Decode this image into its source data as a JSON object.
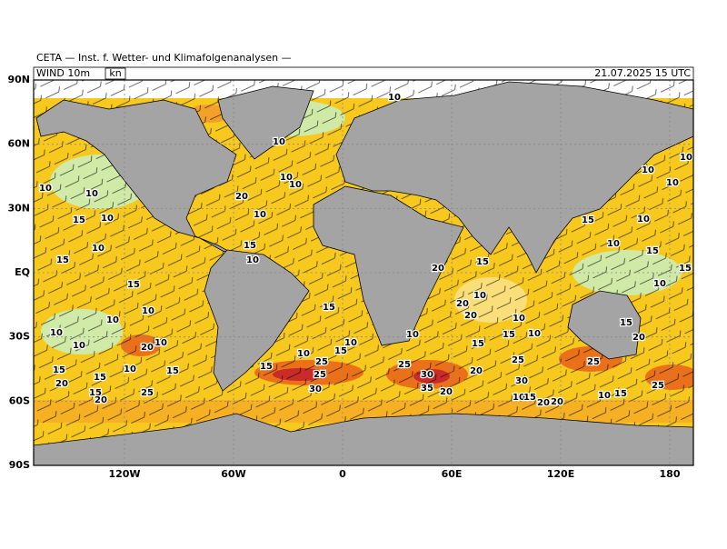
{
  "header": {
    "title": "CETA — Inst. f. Wetter- und Klimafolgenanalysen —",
    "field": "WIND 10m",
    "unit": "kn",
    "date": "21.07.2025 15 UTC"
  },
  "axes": {
    "lat_labels": [
      "90N",
      "60N",
      "30N",
      "EQ",
      "30S",
      "60S",
      "90S"
    ],
    "lon_labels": [
      "120W",
      "60W",
      "0",
      "60E",
      "120E",
      "180"
    ]
  },
  "wind_labels": [
    10,
    10,
    15,
    10,
    10,
    15,
    15,
    10,
    10,
    10,
    10,
    10,
    15,
    20,
    15,
    10,
    20,
    15,
    25,
    15,
    20,
    20,
    10,
    10,
    10,
    10,
    15,
    10,
    15,
    10,
    25,
    15,
    10,
    15,
    30,
    25,
    10,
    20,
    15,
    20,
    10,
    20,
    10,
    25,
    30,
    35,
    20,
    20,
    15,
    15,
    10,
    25,
    10,
    30,
    10,
    15,
    20,
    20,
    15,
    10,
    10,
    15,
    15,
    10,
    15,
    20,
    25,
    25,
    10,
    15,
    10,
    10,
    10
  ]
}
